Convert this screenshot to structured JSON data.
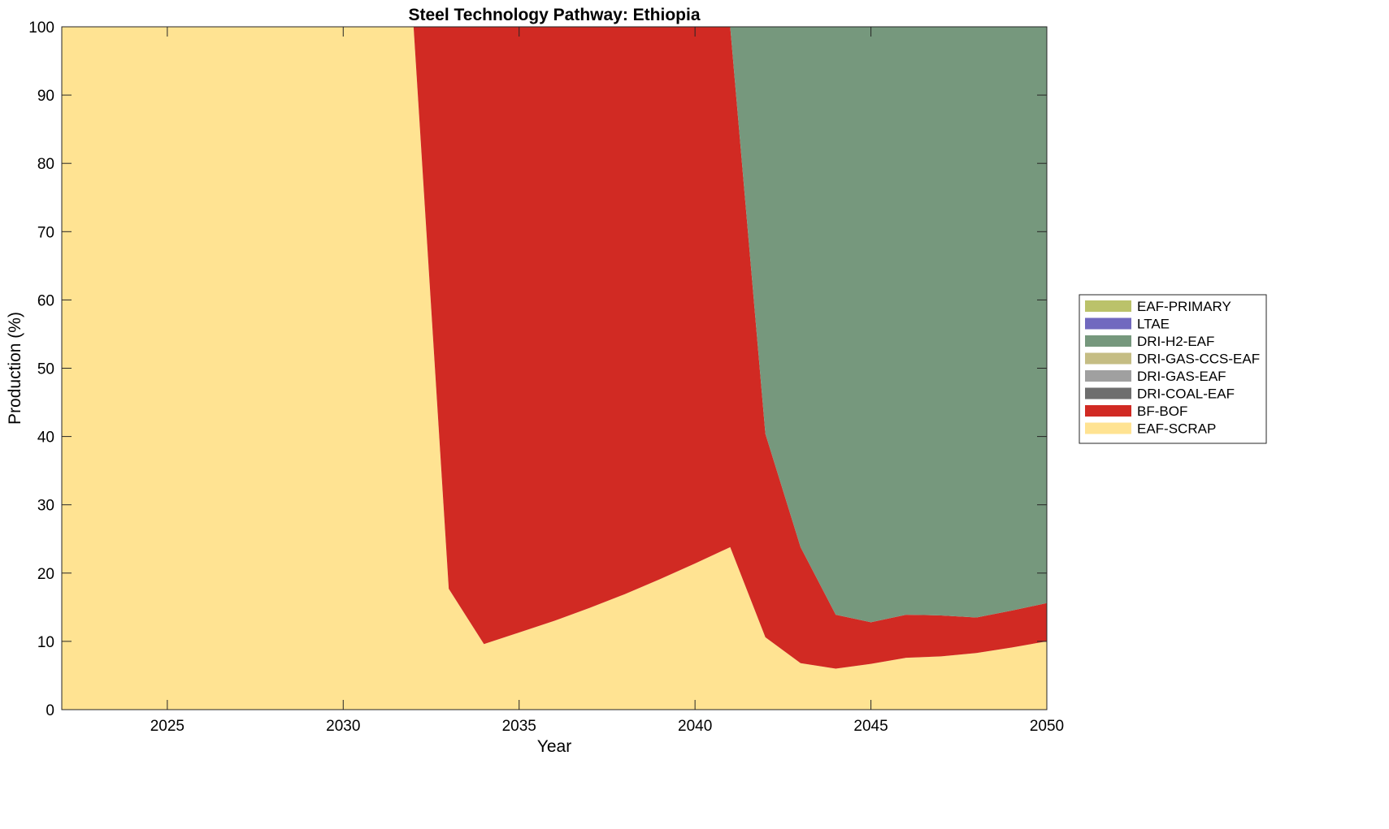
{
  "chart_data": {
    "type": "area",
    "stacked": true,
    "title": "Steel Technology Pathway: Ethiopia",
    "xlabel": "Year",
    "ylabel": "Production (%)",
    "xlim": [
      2022,
      2050
    ],
    "ylim": [
      0,
      100
    ],
    "xticks": [
      2025,
      2030,
      2035,
      2040,
      2045,
      2050
    ],
    "yticks": [
      0,
      10,
      20,
      30,
      40,
      50,
      60,
      70,
      80,
      90,
      100
    ],
    "legend_position": "right",
    "x": [
      2022,
      2023,
      2024,
      2025,
      2026,
      2027,
      2028,
      2029,
      2030,
      2031,
      2032,
      2033,
      2034,
      2035,
      2036,
      2037,
      2038,
      2039,
      2040,
      2041,
      2042,
      2043,
      2044,
      2045,
      2046,
      2047,
      2048,
      2049,
      2050
    ],
    "series": [
      {
        "name": "EAF-SCRAP",
        "color": "#FFE392",
        "values": [
          100,
          100,
          100,
          100,
          100,
          100,
          100,
          100,
          100,
          100,
          100,
          17.7,
          9.6,
          11.3,
          13.0,
          14.9,
          16.9,
          19.1,
          21.4,
          23.8,
          10.6,
          6.8,
          6.0,
          6.7,
          7.6,
          7.8,
          8.3,
          9.1,
          10.0
        ]
      },
      {
        "name": "BF-BOF",
        "color": "#D12A23",
        "values": [
          0,
          0,
          0,
          0,
          0,
          0,
          0,
          0,
          0,
          0,
          0,
          82.3,
          90.4,
          88.7,
          87.0,
          85.1,
          83.1,
          80.9,
          78.6,
          76.2,
          29.8,
          17.0,
          7.9,
          6.1,
          6.3,
          6.0,
          5.2,
          5.4,
          5.6
        ]
      },
      {
        "name": "DRI-COAL-EAF",
        "color": "#6E6E6E",
        "values": [
          0,
          0,
          0,
          0,
          0,
          0,
          0,
          0,
          0,
          0,
          0,
          0,
          0,
          0,
          0,
          0,
          0,
          0,
          0,
          0,
          0,
          0,
          0,
          0,
          0,
          0,
          0,
          0,
          0
        ]
      },
      {
        "name": "DRI-GAS-EAF",
        "color": "#A0A0A0",
        "values": [
          0,
          0,
          0,
          0,
          0,
          0,
          0,
          0,
          0,
          0,
          0,
          0,
          0,
          0,
          0,
          0,
          0,
          0,
          0,
          0,
          0,
          0,
          0,
          0,
          0,
          0,
          0,
          0,
          0
        ]
      },
      {
        "name": "DRI-GAS-CCS-EAF",
        "color": "#C5BD84",
        "values": [
          0,
          0,
          0,
          0,
          0,
          0,
          0,
          0,
          0,
          0,
          0,
          0,
          0,
          0,
          0,
          0,
          0,
          0,
          0,
          0,
          0,
          0,
          0,
          0,
          0,
          0,
          0,
          0,
          0
        ]
      },
      {
        "name": "DRI-H2-EAF",
        "color": "#76987D",
        "values": [
          0,
          0,
          0,
          0,
          0,
          0,
          0,
          0,
          0,
          0,
          0,
          0,
          0,
          0,
          0,
          0,
          0,
          0,
          0,
          0,
          59.6,
          76.2,
          86.1,
          87.2,
          86.1,
          86.2,
          86.5,
          85.5,
          84.4
        ]
      },
      {
        "name": "LTAE",
        "color": "#7169BF",
        "values": [
          0,
          0,
          0,
          0,
          0,
          0,
          0,
          0,
          0,
          0,
          0,
          0,
          0,
          0,
          0,
          0,
          0,
          0,
          0,
          0,
          0,
          0,
          0,
          0,
          0,
          0,
          0,
          0,
          0
        ]
      },
      {
        "name": "EAF-PRIMARY",
        "color": "#BBC26A",
        "values": [
          0,
          0,
          0,
          0,
          0,
          0,
          0,
          0,
          0,
          0,
          0,
          0,
          0,
          0,
          0,
          0,
          0,
          0,
          0,
          0,
          0,
          0,
          0,
          0,
          0,
          0,
          0,
          0,
          0
        ]
      }
    ],
    "legend_order": [
      "EAF-PRIMARY",
      "LTAE",
      "DRI-H2-EAF",
      "DRI-GAS-CCS-EAF",
      "DRI-GAS-EAF",
      "DRI-COAL-EAF",
      "BF-BOF",
      "EAF-SCRAP"
    ]
  }
}
